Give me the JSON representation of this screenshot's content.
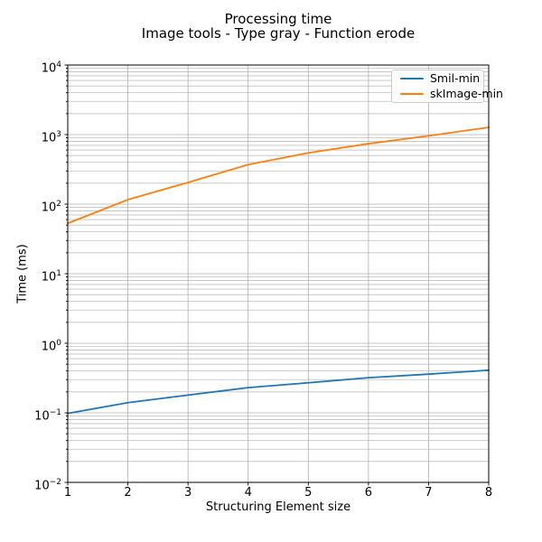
{
  "chart_data": {
    "type": "line",
    "title": "Processing time",
    "subtitle": "Image tools - Type gray - Function erode",
    "xlabel": "Structuring Element size",
    "ylabel": "Time (ms)",
    "x": [
      1,
      2,
      3,
      4,
      5,
      6,
      7,
      8
    ],
    "series": [
      {
        "name": "Smil-min",
        "color": "#1f77b4",
        "values": [
          0.098,
          0.14,
          0.18,
          0.23,
          0.27,
          0.32,
          0.36,
          0.41
        ]
      },
      {
        "name": "skImage-min",
        "color": "#ff7f0e",
        "values": [
          53,
          116,
          205,
          370,
          545,
          740,
          960,
          1270
        ]
      }
    ],
    "xlim": [
      1,
      8
    ],
    "x_ticks": [
      1,
      2,
      3,
      4,
      5,
      6,
      7,
      8
    ],
    "yscale": "log",
    "y_tick_exponents": [
      -2,
      -1,
      0,
      1,
      2,
      3,
      4
    ],
    "ylim_exp": [
      -2,
      4
    ],
    "grid": "both",
    "legend_position": "upper right",
    "colors": {
      "grid_major": "#b0b0b0",
      "grid_minor": "#bfbfbf",
      "spine": "#000000"
    }
  }
}
